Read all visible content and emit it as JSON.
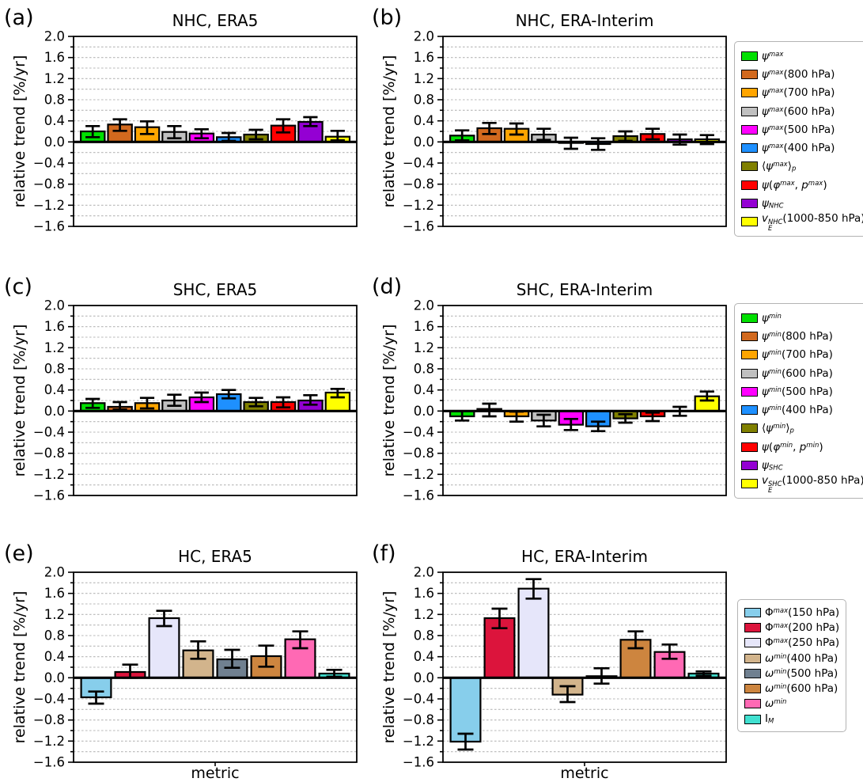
{
  "figure": {
    "background": "#ffffff",
    "ylabel": "relative trend [%/yr]",
    "xlabel": "metric",
    "axis": {
      "ymin": -1.6,
      "ymax": 2.0,
      "ytick_step": 0.4,
      "grid_step": 0.2
    },
    "colors": {
      "axis": "#000000",
      "grid": "#b8b8b8",
      "legend_border": "#b3b3b3",
      "error_bar": "#000000"
    }
  },
  "chart_data": [
    {
      "id": "a",
      "label": "(a)",
      "title": "NHC, ERA5",
      "type": "bar",
      "ylabel": "relative trend [%/yr]",
      "xlabel": "",
      "ylim": [
        -1.6,
        2.0
      ],
      "grid": true,
      "bars": [
        {
          "metric": "ψ^max",
          "color": "#00e000",
          "value": 0.2,
          "err_lo": 0.09,
          "err_hi": 0.3
        },
        {
          "metric": "ψ^max(800 hPa)",
          "color": "#d2691e",
          "value": 0.33,
          "err_lo": 0.21,
          "err_hi": 0.43
        },
        {
          "metric": "ψ^max(700 hPa)",
          "color": "#ffa500",
          "value": 0.28,
          "err_lo": 0.15,
          "err_hi": 0.39
        },
        {
          "metric": "ψ^max(600 hPa)",
          "color": "#c0c0c0",
          "value": 0.19,
          "err_lo": 0.07,
          "err_hi": 0.3
        },
        {
          "metric": "ψ^max(500 hPa)",
          "color": "#ff00ff",
          "value": 0.16,
          "err_lo": 0.07,
          "err_hi": 0.24
        },
        {
          "metric": "ψ^max(400 hPa)",
          "color": "#1e90ff",
          "value": 0.09,
          "err_lo": 0.02,
          "err_hi": 0.17
        },
        {
          "metric": "⟨ψ^max⟩_p",
          "color": "#808000",
          "value": 0.14,
          "err_lo": 0.05,
          "err_hi": 0.23
        },
        {
          "metric": "ψ(φ^max, p^max)",
          "color": "#ff0000",
          "value": 0.31,
          "err_lo": 0.18,
          "err_hi": 0.43
        },
        {
          "metric": "ψ_NHC",
          "color": "#9400d3",
          "value": 0.38,
          "err_lo": 0.3,
          "err_hi": 0.47
        },
        {
          "metric": "v_E^NHC(1000-850 hPa)",
          "color": "#ffff00",
          "value": 0.1,
          "err_lo": 0.03,
          "err_hi": 0.21
        }
      ]
    },
    {
      "id": "b",
      "label": "(b)",
      "title": "NHC, ERA-Interim",
      "type": "bar",
      "ylabel": "relative trend [%/yr]",
      "xlabel": "",
      "ylim": [
        -1.6,
        2.0
      ],
      "grid": true,
      "bars": [
        {
          "metric": "ψ^max",
          "color": "#00e000",
          "value": 0.12,
          "err_lo": 0.03,
          "err_hi": 0.22
        },
        {
          "metric": "ψ^max(800 hPa)",
          "color": "#d2691e",
          "value": 0.26,
          "err_lo": 0.15,
          "err_hi": 0.36
        },
        {
          "metric": "ψ^max(700 hPa)",
          "color": "#ffa500",
          "value": 0.25,
          "err_lo": 0.14,
          "err_hi": 0.35
        },
        {
          "metric": "ψ^max(600 hPa)",
          "color": "#c0c0c0",
          "value": 0.14,
          "err_lo": 0.04,
          "err_hi": 0.25
        },
        {
          "metric": "ψ^max(500 hPa)",
          "color": "#ff00ff",
          "value": -0.02,
          "err_lo": -0.13,
          "err_hi": 0.08
        },
        {
          "metric": "ψ^max(400 hPa)",
          "color": "#1e90ff",
          "value": -0.04,
          "err_lo": -0.15,
          "err_hi": 0.07
        },
        {
          "metric": "⟨ψ^max⟩_p",
          "color": "#808000",
          "value": 0.11,
          "err_lo": 0.02,
          "err_hi": 0.2
        },
        {
          "metric": "ψ(φ^max, p^max)",
          "color": "#ff0000",
          "value": 0.15,
          "err_lo": 0.05,
          "err_hi": 0.25
        },
        {
          "metric": "ψ_NHC",
          "color": "#9400d3",
          "value": 0.05,
          "err_lo": -0.05,
          "err_hi": 0.14
        },
        {
          "metric": "v_E^NHC(1000-850 hPa)",
          "color": "#ffff00",
          "value": 0.05,
          "err_lo": -0.04,
          "err_hi": 0.13
        }
      ]
    },
    {
      "id": "c",
      "label": "(c)",
      "title": "SHC, ERA5",
      "type": "bar",
      "ylabel": "relative trend [%/yr]",
      "xlabel": "",
      "ylim": [
        -1.6,
        2.0
      ],
      "grid": true,
      "bars": [
        {
          "metric": "ψ^min",
          "color": "#00e000",
          "value": 0.15,
          "err_lo": 0.06,
          "err_hi": 0.23
        },
        {
          "metric": "ψ^min(800 hPa)",
          "color": "#d2691e",
          "value": 0.08,
          "err_lo": 0.03,
          "err_hi": 0.17
        },
        {
          "metric": "ψ^min(700 hPa)",
          "color": "#ffa500",
          "value": 0.15,
          "err_lo": 0.05,
          "err_hi": 0.25
        },
        {
          "metric": "ψ^min(600 hPa)",
          "color": "#c0c0c0",
          "value": 0.2,
          "err_lo": 0.1,
          "err_hi": 0.31
        },
        {
          "metric": "ψ^min(500 hPa)",
          "color": "#ff00ff",
          "value": 0.26,
          "err_lo": 0.17,
          "err_hi": 0.35
        },
        {
          "metric": "ψ^min(400 hPa)",
          "color": "#1e90ff",
          "value": 0.32,
          "err_lo": 0.24,
          "err_hi": 0.4
        },
        {
          "metric": "⟨ψ^min⟩_p",
          "color": "#808000",
          "value": 0.17,
          "err_lo": 0.09,
          "err_hi": 0.25
        },
        {
          "metric": "ψ(φ^min, p^min)",
          "color": "#ff0000",
          "value": 0.17,
          "err_lo": 0.07,
          "err_hi": 0.26
        },
        {
          "metric": "ψ_SHC",
          "color": "#9400d3",
          "value": 0.2,
          "err_lo": 0.12,
          "err_hi": 0.3
        },
        {
          "metric": "v_E^SHC(1000-850 hPa)",
          "color": "#ffff00",
          "value": 0.35,
          "err_lo": 0.26,
          "err_hi": 0.42
        }
      ]
    },
    {
      "id": "d",
      "label": "(d)",
      "title": "SHC, ERA-Interim",
      "type": "bar",
      "ylabel": "relative trend [%/yr]",
      "xlabel": "",
      "ylim": [
        -1.6,
        2.0
      ],
      "grid": true,
      "bars": [
        {
          "metric": "ψ^min",
          "color": "#00e000",
          "value": -0.1,
          "err_lo": -0.18,
          "err_hi": 0.0
        },
        {
          "metric": "ψ^min(800 hPa)",
          "color": "#d2691e",
          "value": 0.04,
          "err_lo": -0.1,
          "err_hi": 0.14
        },
        {
          "metric": "ψ^min(700 hPa)",
          "color": "#ffa500",
          "value": -0.1,
          "err_lo": -0.2,
          "err_hi": -0.01
        },
        {
          "metric": "ψ^min(600 hPa)",
          "color": "#c0c0c0",
          "value": -0.18,
          "err_lo": -0.29,
          "err_hi": -0.07
        },
        {
          "metric": "ψ^min(500 hPa)",
          "color": "#ff00ff",
          "value": -0.26,
          "err_lo": -0.36,
          "err_hi": -0.15
        },
        {
          "metric": "ψ^min(400 hPa)",
          "color": "#1e90ff",
          "value": -0.29,
          "err_lo": -0.38,
          "err_hi": -0.2
        },
        {
          "metric": "⟨ψ^min⟩_p",
          "color": "#808000",
          "value": -0.14,
          "err_lo": -0.22,
          "err_hi": -0.06
        },
        {
          "metric": "ψ(φ^min, p^min)",
          "color": "#ff0000",
          "value": -0.1,
          "err_lo": -0.19,
          "err_hi": -0.03
        },
        {
          "metric": "ψ_SHC",
          "color": "#9400d3",
          "value": 0.0,
          "err_lo": -0.09,
          "err_hi": 0.08
        },
        {
          "metric": "v_E^SHC(1000-850 hPa)",
          "color": "#ffff00",
          "value": 0.28,
          "err_lo": 0.2,
          "err_hi": 0.37
        }
      ]
    },
    {
      "id": "e",
      "label": "(e)",
      "title": "HC, ERA5",
      "type": "bar",
      "ylabel": "relative trend [%/yr]",
      "xlabel": "metric",
      "ylim": [
        -1.6,
        2.0
      ],
      "grid": true,
      "bars": [
        {
          "metric": "Φ^max(150 hPa)",
          "color": "#87ceeb",
          "value": -0.37,
          "err_lo": -0.49,
          "err_hi": -0.26
        },
        {
          "metric": "Φ^max(200 hPa)",
          "color": "#dc143c",
          "value": 0.11,
          "err_lo": 0.0,
          "err_hi": 0.25
        },
        {
          "metric": "Φ^max(250 hPa)",
          "color": "#e6e6fa",
          "value": 1.13,
          "err_lo": 0.98,
          "err_hi": 1.27
        },
        {
          "metric": "ω^min(400 hPa)",
          "color": "#d2b48c",
          "value": 0.52,
          "err_lo": 0.36,
          "err_hi": 0.69
        },
        {
          "metric": "ω^min(500 hPa)",
          "color": "#708090",
          "value": 0.35,
          "err_lo": 0.19,
          "err_hi": 0.53
        },
        {
          "metric": "ω^min(600 hPa)",
          "color": "#cd853f",
          "value": 0.41,
          "err_lo": 0.21,
          "err_hi": 0.61
        },
        {
          "metric": "ω^min",
          "color": "#ff69b4",
          "value": 0.73,
          "err_lo": 0.56,
          "err_hi": 0.88
        },
        {
          "metric": "I_M",
          "color": "#40e0d0",
          "value": 0.08,
          "err_lo": 0.02,
          "err_hi": 0.15
        }
      ]
    },
    {
      "id": "f",
      "label": "(f)",
      "title": "HC, ERA-Interim",
      "type": "bar",
      "ylabel": "relative trend [%/yr]",
      "xlabel": "metric",
      "ylim": [
        -1.6,
        2.0
      ],
      "grid": true,
      "bars": [
        {
          "metric": "Φ^max(150 hPa)",
          "color": "#87ceeb",
          "value": -1.21,
          "err_lo": -1.36,
          "err_hi": -1.06
        },
        {
          "metric": "Φ^max(200 hPa)",
          "color": "#dc143c",
          "value": 1.13,
          "err_lo": 0.94,
          "err_hi": 1.31
        },
        {
          "metric": "Φ^max(250 hPa)",
          "color": "#e6e6fa",
          "value": 1.69,
          "err_lo": 1.5,
          "err_hi": 1.87
        },
        {
          "metric": "ω^min(400 hPa)",
          "color": "#d2b48c",
          "value": -0.32,
          "err_lo": -0.46,
          "err_hi": -0.16
        },
        {
          "metric": "ω^min(500 hPa)",
          "color": "#708090",
          "value": 0.03,
          "err_lo": -0.11,
          "err_hi": 0.18
        },
        {
          "metric": "ω^min(600 hPa)",
          "color": "#cd853f",
          "value": 0.72,
          "err_lo": 0.56,
          "err_hi": 0.88
        },
        {
          "metric": "ω^min",
          "color": "#ff69b4",
          "value": 0.49,
          "err_lo": 0.36,
          "err_hi": 0.63
        },
        {
          "metric": "I_M",
          "color": "#40e0d0",
          "value": 0.08,
          "err_lo": 0.04,
          "err_hi": 0.12
        }
      ]
    }
  ],
  "legends": [
    {
      "id": "legend-nhc",
      "entries": [
        {
          "color": "#00e000",
          "label": "ψ^max",
          "label_html": "<i>ψ<sup>max</sup></i>"
        },
        {
          "color": "#d2691e",
          "label": "ψ^max(800 hPa)",
          "label_html": "<i>ψ<sup>max</sup></i>(800 hPa)"
        },
        {
          "color": "#ffa500",
          "label": "ψ^max(700 hPa)",
          "label_html": "<i>ψ<sup>max</sup></i>(700 hPa)"
        },
        {
          "color": "#c0c0c0",
          "label": "ψ^max(600 hPa)",
          "label_html": "<i>ψ<sup>max</sup></i>(600 hPa)"
        },
        {
          "color": "#ff00ff",
          "label": "ψ^max(500 hPa)",
          "label_html": "<i>ψ<sup>max</sup></i>(500 hPa)"
        },
        {
          "color": "#1e90ff",
          "label": "ψ^max(400 hPa)",
          "label_html": "<i>ψ<sup>max</sup></i>(400 hPa)"
        },
        {
          "color": "#808000",
          "label": "⟨ψ^max⟩_p",
          "label_html": "⟨<i>ψ<sup>max</sup></i>⟩<sub><i>p</i></sub>"
        },
        {
          "color": "#ff0000",
          "label": "ψ(φ^max, p^max)",
          "label_html": "<i>ψ</i>(<i>φ<sup>max</sup></i>, <i>p<sup>max</sup></i>)"
        },
        {
          "color": "#9400d3",
          "label": "ψ_NHC",
          "label_html": "<i>ψ<sub>NHC</sub></i>"
        },
        {
          "color": "#ffff00",
          "label": "v_E^NHC(1000-850 hPa)",
          "label_html": "<i>v</i><span class='supsub'><span><i>NHC</i></span><span><i>E</i></span></span>(1000-850 hPa)"
        }
      ]
    },
    {
      "id": "legend-shc",
      "entries": [
        {
          "color": "#00e000",
          "label": "ψ^min",
          "label_html": "<i>ψ<sup>min</sup></i>"
        },
        {
          "color": "#d2691e",
          "label": "ψ^min(800 hPa)",
          "label_html": "<i>ψ<sup>min</sup></i>(800 hPa)"
        },
        {
          "color": "#ffa500",
          "label": "ψ^min(700 hPa)",
          "label_html": "<i>ψ<sup>min</sup></i>(700 hPa)"
        },
        {
          "color": "#c0c0c0",
          "label": "ψ^min(600 hPa)",
          "label_html": "<i>ψ<sup>min</sup></i>(600 hPa)"
        },
        {
          "color": "#ff00ff",
          "label": "ψ^min(500 hPa)",
          "label_html": "<i>ψ<sup>min</sup></i>(500 hPa)"
        },
        {
          "color": "#1e90ff",
          "label": "ψ^min(400 hPa)",
          "label_html": "<i>ψ<sup>min</sup></i>(400 hPa)"
        },
        {
          "color": "#808000",
          "label": "⟨ψ^min⟩_p",
          "label_html": "⟨<i>ψ<sup>min</sup></i>⟩<sub><i>p</i></sub>"
        },
        {
          "color": "#ff0000",
          "label": "ψ(φ^min, p^min)",
          "label_html": "<i>ψ</i>(<i>φ<sup>min</sup></i>, <i>p<sup>min</sup></i>)"
        },
        {
          "color": "#9400d3",
          "label": "ψ_SHC",
          "label_html": "<i>ψ<sub>SHC</sub></i>"
        },
        {
          "color": "#ffff00",
          "label": "v_E^SHC(1000-850 hPa)",
          "label_html": "<i>v</i><span class='supsub'><span><i>SHC</i></span><span><i>E</i></span></span>(1000-850 hPa)"
        }
      ]
    },
    {
      "id": "legend-hc",
      "entries": [
        {
          "color": "#87ceeb",
          "label": "Φ^max(150 hPa)",
          "label_html": "Φ<sup><i>max</i></sup>(150 hPa)"
        },
        {
          "color": "#dc143c",
          "label": "Φ^max(200 hPa)",
          "label_html": "Φ<sup><i>max</i></sup>(200 hPa)"
        },
        {
          "color": "#e6e6fa",
          "label": "Φ^max(250 hPa)",
          "label_html": "Φ<sup><i>max</i></sup>(250 hPa)"
        },
        {
          "color": "#d2b48c",
          "label": "ω^min(400 hPa)",
          "label_html": "<i>ω<sup>min</sup></i>(400 hPa)"
        },
        {
          "color": "#708090",
          "label": "ω^min(500 hPa)",
          "label_html": "<i>ω<sup>min</sup></i>(500 hPa)"
        },
        {
          "color": "#cd853f",
          "label": "ω^min(600 hPa)",
          "label_html": "<i>ω<sup>min</sup></i>(600 hPa)"
        },
        {
          "color": "#ff69b4",
          "label": "ω^min",
          "label_html": "<i>ω<sup>min</sup></i>"
        },
        {
          "color": "#40e0d0",
          "label": "I_M",
          "label_html": "I<sub><i>M</i></sub>"
        }
      ]
    }
  ]
}
